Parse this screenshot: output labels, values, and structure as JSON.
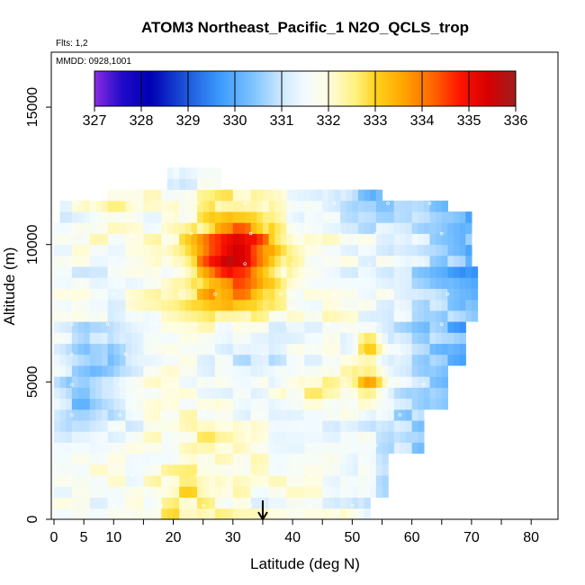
{
  "chart_data": {
    "type": "heatmap",
    "title": "ATOM3 Northeast_Pacific_1 N2O_QCLS_trop",
    "flights_label": "Flts: 1,2",
    "dates_label": "MMDD: 0928,1001",
    "xlabel": "Latitude (deg N)",
    "ylabel": "Altitude (m)",
    "xlim": [
      -0.5,
      85
    ],
    "ylim": [
      0,
      17500
    ],
    "x_ticks_labeled": [
      {
        "value": 0,
        "label": "0"
      },
      {
        "value": 5,
        "label": "5"
      },
      {
        "value": 10,
        "label": "10"
      },
      {
        "value": 20,
        "label": "20"
      },
      {
        "value": 30,
        "label": "30"
      },
      {
        "value": 40,
        "label": "40"
      },
      {
        "value": 50,
        "label": "50"
      },
      {
        "value": 60,
        "label": "60"
      },
      {
        "value": 70,
        "label": "70"
      },
      {
        "value": 80,
        "label": "80"
      }
    ],
    "x_ticks_minor": [
      15,
      25,
      35,
      45,
      55,
      65,
      75,
      85
    ],
    "y_ticks": [
      {
        "value": 0,
        "label": "0"
      },
      {
        "value": 5000,
        "label": "5000"
      },
      {
        "value": 10000,
        "label": "10000"
      },
      {
        "value": 15000,
        "label": "15000"
      }
    ],
    "colorbar": {
      "min": 327,
      "max": 336,
      "labels": [
        "327",
        "328",
        "329",
        "330",
        "331",
        "332",
        "333",
        "334",
        "335",
        "336"
      ],
      "stops": [
        {
          "value": 327.0,
          "color": "#8a2be2"
        },
        {
          "value": 327.6,
          "color": "#1e0ac8"
        },
        {
          "value": 328.2,
          "color": "#0000b4"
        },
        {
          "value": 329.0,
          "color": "#1e5adc"
        },
        {
          "value": 329.7,
          "color": "#3c9cff"
        },
        {
          "value": 330.4,
          "color": "#80c4ff"
        },
        {
          "value": 331.0,
          "color": "#cfe8ff"
        },
        {
          "value": 331.5,
          "color": "#f2fbff"
        },
        {
          "value": 332.0,
          "color": "#fffde0"
        },
        {
          "value": 332.6,
          "color": "#fff07a"
        },
        {
          "value": 333.0,
          "color": "#ffd21e"
        },
        {
          "value": 333.6,
          "color": "#ffa500"
        },
        {
          "value": 334.2,
          "color": "#ff6a00"
        },
        {
          "value": 334.8,
          "color": "#ff1500"
        },
        {
          "value": 335.4,
          "color": "#d60000"
        },
        {
          "value": 336.0,
          "color": "#a01e1e"
        }
      ]
    },
    "arrow_marker_latitude": 35,
    "value_range": {
      "lat": [
        0,
        71
      ],
      "alt": [
        0,
        12800
      ]
    },
    "grid": false,
    "legend": "colorbar top inside plot"
  }
}
